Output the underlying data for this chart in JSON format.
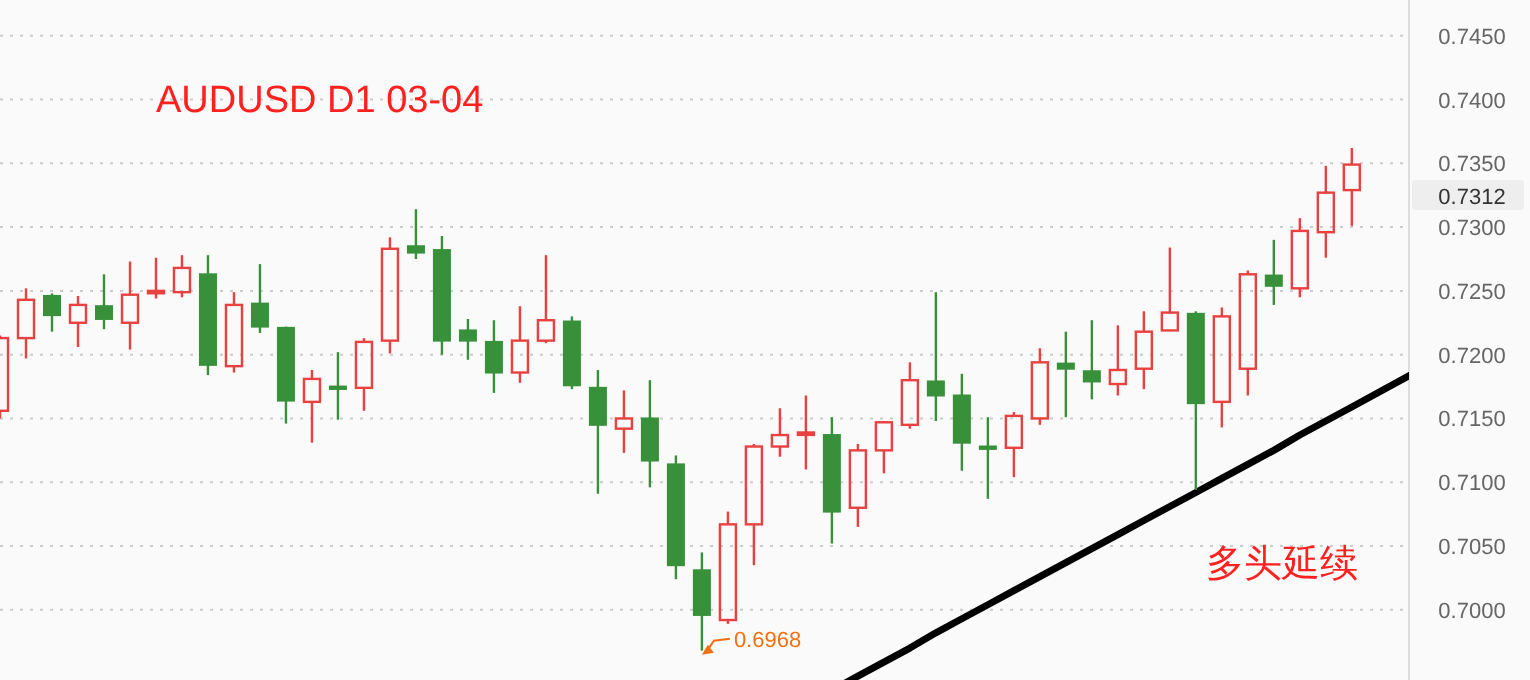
{
  "chart_data": {
    "type": "candlestick",
    "title": "AUDUSD  D1   03-04",
    "categories": [
      null,
      null,
      null,
      null,
      null,
      null,
      null,
      null,
      null,
      null,
      null,
      null,
      null,
      null,
      null,
      null,
      null,
      null,
      null,
      null,
      null,
      null,
      null,
      null,
      null,
      null,
      null,
      null,
      null,
      null,
      null,
      null,
      null,
      null,
      null,
      null,
      null,
      null,
      null,
      null,
      null,
      null,
      null,
      null,
      null,
      null,
      null,
      null,
      null,
      null,
      null,
      null,
      null
    ],
    "series": [
      {
        "type": "candlestick",
        "colors": [
          "#e8413f",
          "#e8413f",
          "#38913a",
          "#e8413f",
          "#38913a",
          "#e8413f",
          "#e8413f",
          "#e8413f",
          "#38913a",
          "#e8413f",
          "#38913a",
          "#38913a",
          "#e8413f",
          "#38913a",
          "#e8413f",
          "#e8413f",
          "#38913a",
          "#38913a",
          "#38913a",
          "#38913a",
          "#e8413f",
          "#e8413f",
          "#38913a",
          "#38913a",
          "#e8413f",
          "#38913a",
          "#38913a",
          "#38913a",
          "#e8413f",
          "#e8413f",
          "#e8413f",
          "#e8413f",
          "#38913a",
          "#e8413f",
          "#e8413f",
          "#e8413f",
          "#38913a",
          "#38913a",
          "#38913a",
          "#e8413f",
          "#e8413f",
          "#38913a",
          "#38913a",
          "#e8413f",
          "#e8413f",
          "#e8413f",
          "#38913a",
          "#e8413f",
          "#e8413f",
          "#38913a",
          "#e8413f",
          "#e8413f",
          "#e8413f"
        ],
        "ohlc": [
          [
            0.7156,
            0.7215,
            0.715,
            0.7213
          ],
          [
            0.7213,
            0.7252,
            0.7197,
            0.7243
          ],
          [
            0.7246,
            0.7248,
            0.7218,
            0.7231
          ],
          [
            0.7225,
            0.7246,
            0.7206,
            0.7239
          ],
          [
            0.7238,
            0.7263,
            0.722,
            0.7228
          ],
          [
            0.7225,
            0.7273,
            0.7204,
            0.7247
          ],
          [
            0.7249,
            0.7276,
            0.7244,
            0.725
          ],
          [
            0.7249,
            0.7278,
            0.7245,
            0.7268
          ],
          [
            0.7263,
            0.7278,
            0.7184,
            0.7192
          ],
          [
            0.7191,
            0.7249,
            0.7186,
            0.7239
          ],
          [
            0.724,
            0.7271,
            0.7217,
            0.7222
          ],
          [
            0.7221,
            0.7222,
            0.7146,
            0.7164
          ],
          [
            0.7163,
            0.7188,
            0.7131,
            0.7181
          ],
          [
            0.7175,
            0.7202,
            0.7149,
            0.7174
          ],
          [
            0.7174,
            0.7213,
            0.7156,
            0.721
          ],
          [
            0.7211,
            0.7292,
            0.7201,
            0.7283
          ],
          [
            0.7285,
            0.7314,
            0.7275,
            0.728
          ],
          [
            0.7282,
            0.7293,
            0.72,
            0.7211
          ],
          [
            0.7219,
            0.7228,
            0.7196,
            0.7211
          ],
          [
            0.721,
            0.7227,
            0.717,
            0.7186
          ],
          [
            0.7186,
            0.7238,
            0.7178,
            0.7211
          ],
          [
            0.7211,
            0.7278,
            0.7209,
            0.7227
          ],
          [
            0.7226,
            0.723,
            0.7173,
            0.7176
          ],
          [
            0.7174,
            0.7188,
            0.7091,
            0.7145
          ],
          [
            0.7142,
            0.7172,
            0.7123,
            0.715
          ],
          [
            0.715,
            0.718,
            0.7096,
            0.7117
          ],
          [
            0.7114,
            0.7121,
            0.7024,
            0.7035
          ],
          [
            0.7031,
            0.7045,
            0.6968,
            0.6996
          ],
          [
            0.6992,
            0.7077,
            0.6989,
            0.7067
          ],
          [
            0.7067,
            0.713,
            0.7035,
            0.7128
          ],
          [
            0.7128,
            0.7158,
            0.712,
            0.7137
          ],
          [
            0.7138,
            0.7168,
            0.711,
            0.7139
          ],
          [
            0.7137,
            0.7151,
            0.7052,
            0.7077
          ],
          [
            0.708,
            0.713,
            0.7065,
            0.7125
          ],
          [
            0.7125,
            0.7148,
            0.7107,
            0.7147
          ],
          [
            0.7145,
            0.7194,
            0.7142,
            0.718
          ],
          [
            0.7179,
            0.7249,
            0.7148,
            0.7168
          ],
          [
            0.7168,
            0.7185,
            0.7109,
            0.7131
          ],
          [
            0.7128,
            0.7151,
            0.7087,
            0.7127
          ],
          [
            0.7127,
            0.7155,
            0.7104,
            0.7152
          ],
          [
            0.715,
            0.7205,
            0.7145,
            0.7194
          ],
          [
            0.7193,
            0.7218,
            0.7151,
            0.7189
          ],
          [
            0.7187,
            0.7227,
            0.7165,
            0.7179
          ],
          [
            0.7177,
            0.7223,
            0.7168,
            0.7188
          ],
          [
            0.7189,
            0.7234,
            0.7173,
            0.7218
          ],
          [
            0.7219,
            0.7284,
            0.7219,
            0.7233
          ],
          [
            0.7232,
            0.7234,
            0.7094,
            0.7162
          ],
          [
            0.7163,
            0.7237,
            0.7143,
            0.723
          ],
          [
            0.7189,
            0.7266,
            0.7168,
            0.7263
          ],
          [
            0.7262,
            0.729,
            0.7239,
            0.7254
          ],
          [
            0.7252,
            0.7307,
            0.7245,
            0.7297
          ],
          [
            0.7296,
            0.7348,
            0.7276,
            0.7327
          ],
          [
            0.7329,
            0.7362,
            0.7301,
            0.7349
          ]
        ]
      },
      {
        "type": "line",
        "values": [
          null,
          null,
          null,
          null,
          null,
          null,
          null,
          null,
          null,
          null,
          null,
          null,
          null,
          null,
          null,
          null,
          null,
          null,
          null,
          null,
          null,
          null,
          null,
          null,
          null,
          null,
          null,
          null,
          null,
          null,
          null,
          null,
          null,
          0.6948,
          0.6959,
          0.697,
          0.6982,
          0.6993,
          0.7004,
          0.7015,
          0.7026,
          0.7037,
          0.7048,
          0.7059,
          0.707,
          0.7081,
          0.7092,
          0.7103,
          0.7114,
          0.7125,
          0.7137,
          0.7148,
          0.7159
        ],
        "color": "#000000"
      }
    ],
    "ylim": [
      0.6945,
      0.7478
    ],
    "yticks": [
      {
        "value": 0.7,
        "label": "0.7000"
      },
      {
        "value": 0.705,
        "label": "0.7050"
      },
      {
        "value": 0.71,
        "label": "0.7100"
      },
      {
        "value": 0.715,
        "label": "0.7150"
      },
      {
        "value": 0.72,
        "label": "0.7200"
      },
      {
        "value": 0.725,
        "label": "0.7250"
      },
      {
        "value": 0.73,
        "label": "0.7300"
      },
      {
        "value": 0.735,
        "label": "0.7350"
      },
      {
        "value": 0.74,
        "label": "0.7400"
      },
      {
        "value": 0.745,
        "label": "0.7450"
      }
    ],
    "tick_labels": "y",
    "grid": "y",
    "annotations": [
      "0.6968",
      "0.7312",
      "多头延续"
    ]
  }
}
